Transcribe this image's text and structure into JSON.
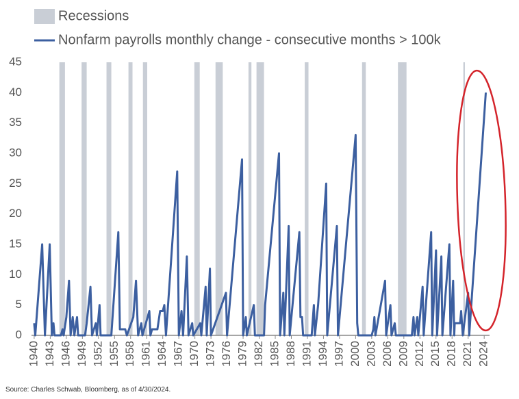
{
  "chart_data": {
    "type": "line",
    "source": "Source: Charles Schwab, Bloomberg, as of 4/30/2024.",
    "recessions": {
      "name": "Recessions",
      "color": "#c9ced6",
      "periods": [
        [
          1944.7,
          1945.75
        ],
        [
          1948.85,
          1949.8
        ],
        [
          1953.5,
          1954.4
        ],
        [
          1957.6,
          1958.35
        ],
        [
          1960.3,
          1961.1
        ],
        [
          1969.9,
          1970.9
        ],
        [
          1973.85,
          1975.2
        ],
        [
          1980.0,
          1980.55
        ],
        [
          1981.5,
          1982.9
        ],
        [
          1990.5,
          1991.2
        ],
        [
          2001.2,
          2001.9
        ],
        [
          2007.9,
          2009.5
        ],
        [
          2020.1,
          2020.4
        ]
      ]
    },
    "series": [
      {
        "name": "Nonfarm payrolls monthly change - consecutive months > 100k",
        "color": "#3c5fa0",
        "x": [
          1940.0,
          1940.2,
          1941.5,
          1942.0,
          1942.9,
          1943.3,
          1943.6,
          1943.8,
          1945.0,
          1945.3,
          1945.5,
          1946.0,
          1946.5,
          1946.8,
          1947.2,
          1947.5,
          1948.0,
          1948.2,
          1949.5,
          1949.8,
          1950.5,
          1950.8,
          1951.5,
          1951.7,
          1952.2,
          1952.4,
          1954.4,
          1955.7,
          1956.0,
          1957.0,
          1957.3,
          1958.5,
          1959.0,
          1959.4,
          1960.0,
          1960.2,
          1961.5,
          1961.7,
          1962.0,
          1963.0,
          1963.5,
          1964.0,
          1964.3,
          1964.6,
          1966.7,
          1967.0,
          1967.5,
          1967.8,
          1968.5,
          1968.8,
          1969.5,
          1969.7,
          1971.0,
          1971.2,
          1972.0,
          1972.2,
          1972.8,
          1973.0,
          1975.8,
          1976.0,
          1978.8,
          1979.0,
          1979.5,
          1979.7,
          1981.0,
          1981.2,
          1982.9,
          1983.1,
          1985.7,
          1985.9,
          1986.5,
          1986.7,
          1987.5,
          1987.7,
          1989.5,
          1989.7,
          1990.0,
          1990.2,
          1991.8,
          1992.2,
          1992.4,
          1993.0,
          1994.5,
          1994.7,
          1996.5,
          1996.7,
          2000.0,
          2000.3,
          2000.5,
          2003.0,
          2003.3,
          2003.5,
          2003.7,
          2005.5,
          2005.7,
          2006.5,
          2006.7,
          2007.3,
          2007.5,
          2010.5,
          2010.8,
          2011.0,
          2011.5,
          2011.7,
          2012.5,
          2012.7,
          2014.1,
          2014.3,
          2015.0,
          2015.2,
          2016.0,
          2016.2,
          2017.5,
          2017.7,
          2018.2,
          2018.4,
          2018.5,
          2019.5,
          2019.7,
          2020.0,
          2021.0,
          2021.2,
          2024.3
        ],
        "values": [
          2,
          0,
          15,
          0,
          15,
          0,
          2,
          0,
          0,
          1,
          0,
          3,
          9,
          0,
          3,
          0,
          3,
          0,
          0,
          2,
          8,
          0,
          2,
          0,
          5,
          0,
          0,
          17,
          1,
          1,
          0,
          3,
          9,
          0,
          2,
          0,
          4,
          0,
          1,
          1,
          4,
          4,
          5,
          0,
          27,
          0,
          4,
          0,
          13,
          0,
          2,
          0,
          2,
          0,
          8,
          0,
          11,
          0,
          7,
          0,
          29,
          0,
          3,
          0,
          5,
          0,
          0,
          5,
          30,
          0,
          7,
          0,
          18,
          0,
          17,
          3,
          3,
          0,
          0,
          5,
          0,
          5,
          25,
          0,
          18,
          0,
          33,
          2,
          0,
          0,
          1,
          3,
          0,
          9,
          0,
          5,
          0,
          2,
          0,
          0,
          3,
          0,
          3,
          0,
          8,
          0,
          17,
          0,
          14,
          0,
          13,
          0,
          15,
          0,
          9,
          0,
          2,
          2,
          4,
          0,
          7,
          0,
          40
        ]
      }
    ],
    "xlim": [
      1939.5,
      2025
    ],
    "xticks": [
      1940,
      1943,
      1946,
      1949,
      1952,
      1955,
      1958,
      1961,
      1964,
      1967,
      1970,
      1973,
      1976,
      1979,
      1982,
      1985,
      1988,
      1991,
      1994,
      1997,
      2000,
      2003,
      2006,
      2009,
      2012,
      2015,
      2018,
      2021,
      2024
    ],
    "ylim": [
      0,
      45
    ],
    "yticks": [
      0,
      5,
      10,
      15,
      20,
      25,
      30,
      35,
      40,
      45
    ]
  }
}
